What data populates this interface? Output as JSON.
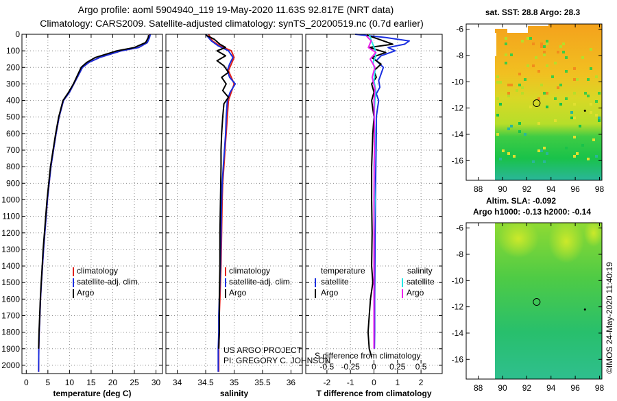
{
  "header": {
    "line1": "Argo profile: aoml 5904940_119 19-May-2020 11.63S 92.817E (NRT data)",
    "line2": "Climatology: CARS2009. Satellite-adjusted climatology: synTS_20200519.nc (0.7d earlier)"
  },
  "credit": {
    "line1": "US ARGO PROJECT",
    "line2": "PI: GREGORY C. JOHNSON",
    "imos": "©IMOS 24-May-2020 11:40:19"
  },
  "colors": {
    "climatology": "#e0201a",
    "satellite": "#1a2fe0",
    "argo": "#000000",
    "sat_salinity": "#22e6e6",
    "argo_salinity": "#ee22ee"
  },
  "chart_data": [
    {
      "type": "line",
      "name": "temperature",
      "xlabel": "temperature (deg C)",
      "ylabel": "",
      "xlim": [
        -1,
        31.5
      ],
      "ylim": [
        2050,
        0
      ],
      "xticks": [
        0,
        5,
        10,
        15,
        20,
        25,
        30
      ],
      "xtick_labels": [
        "0",
        "5",
        "10",
        "15",
        "20",
        "25",
        "30"
      ],
      "yticks": [
        0,
        100,
        200,
        300,
        400,
        500,
        600,
        700,
        800,
        900,
        1000,
        1100,
        1200,
        1300,
        1400,
        1500,
        1600,
        1700,
        1800,
        1900,
        2000
      ],
      "ytick_labels": [
        "0",
        "100",
        "200",
        "300",
        "400",
        "500",
        "600",
        "700",
        "800",
        "900",
        "1000",
        "1100",
        "1200",
        "1300",
        "1400",
        "1500",
        "1600",
        "1700",
        "1800",
        "1900",
        "2000"
      ],
      "legend": [
        "climatology",
        "satellite-adj. clim.",
        "Argo"
      ],
      "series": [
        {
          "name": "climatology",
          "x": [
            28.5,
            28.4,
            28.0,
            26,
            22,
            17,
            14.5,
            13,
            12,
            11,
            10,
            8.6,
            7.6,
            6.9,
            6.3,
            5.7,
            5.3,
            4.9,
            4.6,
            4.3,
            4.0,
            3.75,
            3.5,
            3.3,
            3.15,
            3.0,
            2.9,
            2.85
          ],
          "y": [
            0,
            20,
            50,
            80,
            100,
            140,
            170,
            200,
            250,
            300,
            350,
            400,
            500,
            600,
            700,
            800,
            900,
            1000,
            1100,
            1200,
            1300,
            1400,
            1500,
            1600,
            1700,
            1800,
            1900,
            2040
          ]
        },
        {
          "name": "satellite-adj. clim.",
          "x": [
            28.7,
            28.5,
            28.0,
            26,
            22,
            17,
            14.5,
            13,
            12,
            11,
            10,
            8.6,
            7.6,
            6.9,
            6.3,
            5.7,
            5.3,
            4.9,
            4.6,
            4.3,
            4.0,
            3.75,
            3.5,
            3.3,
            3.15,
            3.0,
            2.9,
            2.85
          ],
          "y": [
            0,
            20,
            50,
            80,
            100,
            140,
            170,
            200,
            250,
            300,
            350,
            400,
            500,
            600,
            700,
            800,
            900,
            1000,
            1100,
            1200,
            1300,
            1400,
            1500,
            1600,
            1700,
            1800,
            1900,
            2040
          ]
        },
        {
          "name": "Argo",
          "x": [
            28.3,
            28.2,
            27.6,
            25,
            21,
            16,
            14,
            12.7,
            11.8,
            10.9,
            9.8,
            8.5,
            7.5,
            6.8,
            6.2,
            5.6,
            5.2,
            4.8,
            4.5,
            4.2,
            3.9,
            3.7,
            3.45,
            3.25,
            3.1,
            2.95,
            2.85
          ],
          "y": [
            5,
            20,
            50,
            80,
            100,
            140,
            170,
            200,
            250,
            300,
            350,
            400,
            500,
            600,
            700,
            800,
            900,
            1000,
            1100,
            1200,
            1300,
            1400,
            1500,
            1600,
            1700,
            1800,
            1900
          ]
        }
      ]
    },
    {
      "type": "line",
      "name": "salinity",
      "xlabel": "salinity",
      "xlim": [
        33.8,
        36.2
      ],
      "ylim": [
        2050,
        0
      ],
      "xticks": [
        34,
        34.5,
        35,
        35.5,
        36
      ],
      "xtick_labels": [
        "34",
        "34.5",
        "35",
        "35.5",
        "36"
      ],
      "legend": [
        "climatology",
        "satellite-adj. clim.",
        "Argo"
      ],
      "series": [
        {
          "name": "climatology",
          "x": [
            34.55,
            34.62,
            34.75,
            34.95,
            35.0,
            34.95,
            34.9,
            34.95,
            35.0,
            34.95,
            34.9,
            34.88,
            34.86,
            34.84,
            34.82,
            34.8,
            34.79,
            34.78,
            34.77,
            34.76,
            34.75,
            34.74,
            34.74,
            34.73,
            34.73
          ],
          "y": [
            0,
            40,
            70,
            100,
            140,
            180,
            220,
            260,
            300,
            350,
            400,
            500,
            600,
            700,
            800,
            900,
            1000,
            1200,
            1400,
            1500,
            1600,
            1700,
            1800,
            1900,
            2040
          ]
        },
        {
          "name": "satellite-adj. clim.",
          "x": [
            34.5,
            34.6,
            34.72,
            34.9,
            34.98,
            34.92,
            34.88,
            34.92,
            35.02,
            34.93,
            34.88,
            34.86,
            34.85,
            34.83,
            34.81,
            34.79,
            34.78,
            34.77,
            34.76,
            34.75,
            34.74,
            34.73,
            34.73,
            34.72,
            34.72
          ],
          "y": [
            0,
            40,
            70,
            100,
            140,
            180,
            220,
            260,
            300,
            350,
            400,
            500,
            600,
            700,
            800,
            900,
            1000,
            1200,
            1400,
            1500,
            1600,
            1700,
            1800,
            1900,
            2040
          ]
        },
        {
          "name": "Argo",
          "x": [
            34.5,
            34.65,
            34.75,
            34.85,
            34.7,
            34.85,
            34.7,
            34.82,
            34.9,
            34.78,
            34.86,
            34.8,
            34.9,
            34.82,
            34.8,
            34.78,
            34.77,
            34.77,
            34.76,
            34.75,
            34.75,
            34.74,
            34.74,
            34.73
          ],
          "y": [
            5,
            30,
            60,
            80,
            100,
            130,
            160,
            190,
            230,
            260,
            300,
            340,
            380,
            420,
            500,
            600,
            700,
            800,
            1000,
            1200,
            1400,
            1600,
            1800,
            1900
          ]
        }
      ]
    },
    {
      "type": "line",
      "name": "difference",
      "xlabel": "T difference from climatology",
      "xlim": [
        -2.9,
        2.9
      ],
      "ylim": [
        2050,
        0
      ],
      "xticks": [
        -2,
        -1,
        0,
        1,
        2
      ],
      "xtick_labels": [
        "-2",
        "-1",
        "0",
        "1",
        "2"
      ],
      "s_axis_label": "S difference from climatology",
      "s_xticks": [
        -0.5,
        -0.25,
        0,
        0.25,
        0.5
      ],
      "s_xtick_labels": [
        "-0.5",
        "-0.25",
        "0",
        "0.25",
        "0.5"
      ],
      "legend": {
        "temperature": "temperature",
        "salinity": "salinity",
        "satellite": "satellite",
        "argo": "Argo"
      },
      "series": [
        {
          "name": "T satellite",
          "x": [
            -0.8,
            0.5,
            1.5,
            1.3,
            0.6,
            0.9,
            0.3,
            0.1,
            0.4,
            0.3,
            0.2,
            0.25,
            0.1,
            0.2,
            0.15,
            0.1,
            0.1,
            0.08,
            0.06,
            0.05,
            0.04,
            0.03,
            0.03,
            0.02
          ],
          "y": [
            0,
            20,
            40,
            60,
            80,
            100,
            130,
            160,
            200,
            240,
            280,
            320,
            360,
            400,
            450,
            500,
            600,
            800,
            1000,
            1200,
            1400,
            1600,
            1800,
            1900
          ]
        },
        {
          "name": "T Argo",
          "x": [
            -0.3,
            0.2,
            0.8,
            -0.2,
            0.5,
            -0.1,
            0.3,
            0.0,
            0.1,
            -0.1,
            0.0,
            -0.1,
            -0.05,
            0.0,
            -0.05,
            -0.1,
            -0.1,
            -0.08,
            -0.1,
            -0.05,
            -0.15,
            -0.2,
            -0.25,
            -0.2,
            -0.1
          ],
          "y": [
            5,
            30,
            60,
            80,
            110,
            140,
            180,
            220,
            260,
            300,
            350,
            400,
            450,
            500,
            600,
            800,
            1000,
            1200,
            1400,
            1500,
            1600,
            1700,
            1800,
            1900,
            1950
          ]
        },
        {
          "name": "S satellite",
          "x": [
            -0.05,
            -0.02,
            0.01,
            0.02,
            -0.01,
            0.01,
            0.0,
            0.02,
            0.01,
            0.0,
            0.01,
            0.0,
            0.01,
            0.0,
            0.0,
            0.0,
            0.0
          ],
          "y": [
            0,
            50,
            90,
            130,
            170,
            220,
            280,
            340,
            400,
            500,
            600,
            800,
            1000,
            1200,
            1500,
            1800,
            1900
          ]
        },
        {
          "name": "S Argo",
          "x": [
            -0.08,
            -0.03,
            -0.06,
            0.02,
            -0.04,
            0.01,
            -0.02,
            0.01,
            0.0,
            0.005,
            0.0,
            0.0,
            0.0
          ],
          "y": [
            10,
            40,
            80,
            110,
            150,
            200,
            260,
            330,
            400,
            600,
            1000,
            1500,
            1900
          ]
        }
      ]
    }
  ],
  "sst_map": {
    "title": "sat. SST: 28.8 Argo: 28.3",
    "lon_ticks": [
      "88",
      "90",
      "92",
      "94",
      "96",
      "98"
    ],
    "lat_ticks": [
      "-6",
      "-8",
      "-10",
      "-12",
      "-14",
      "-16"
    ],
    "lon_values": [
      88,
      90,
      92,
      94,
      96,
      98
    ],
    "lat_values": [
      -6,
      -8,
      -10,
      -12,
      -14,
      -16
    ],
    "xlim": [
      87,
      98.2
    ],
    "ylim": [
      -17.5,
      -5.6
    ],
    "profile_lon": 92.817,
    "profile_lat": -11.63
  },
  "ssh_map": {
    "title_line1": "Altim. SLA: -0.092",
    "title_line2": "Argo h1000: -0.13 h2000: -0.14",
    "lon_ticks": [
      "88",
      "90",
      "92",
      "94",
      "96",
      "98"
    ],
    "lat_ticks": [
      "-6",
      "-8",
      "-10",
      "-12",
      "-14",
      "-16"
    ],
    "lon_values": [
      88,
      90,
      92,
      94,
      96,
      98
    ],
    "lat_values": [
      -6,
      -8,
      -10,
      -12,
      -14,
      -16
    ],
    "xlim": [
      87,
      98.2
    ],
    "ylim": [
      -17.5,
      -5.6
    ],
    "profile_lon": 92.817,
    "profile_lat": -11.63
  }
}
